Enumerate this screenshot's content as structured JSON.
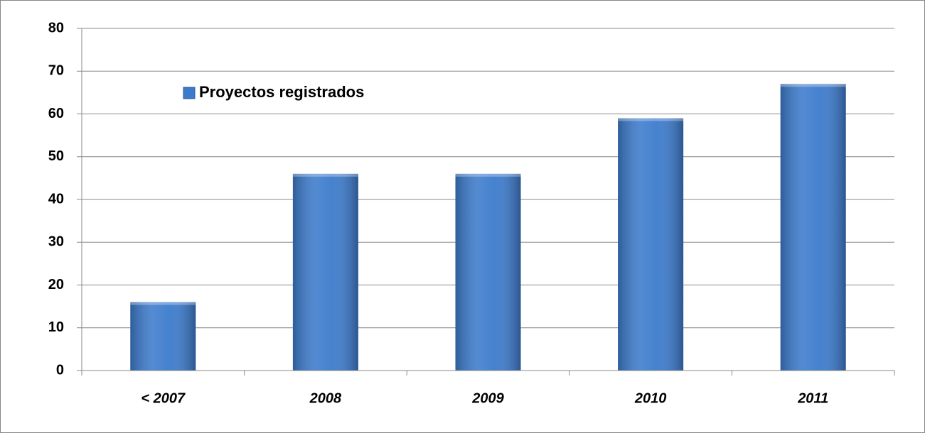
{
  "chart_data": {
    "type": "bar",
    "categories": [
      "< 2007",
      "2008",
      "2009",
      "2010",
      "2011"
    ],
    "series": [
      {
        "name": "Proyectos registrados",
        "color": "#3c7bcc",
        "values": [
          16,
          46,
          46,
          59,
          67
        ]
      }
    ],
    "ylim": [
      0,
      80
    ],
    "yticks": [
      0,
      10,
      20,
      30,
      40,
      50,
      60,
      70,
      80
    ],
    "grid": true,
    "legend": "top-left"
  }
}
